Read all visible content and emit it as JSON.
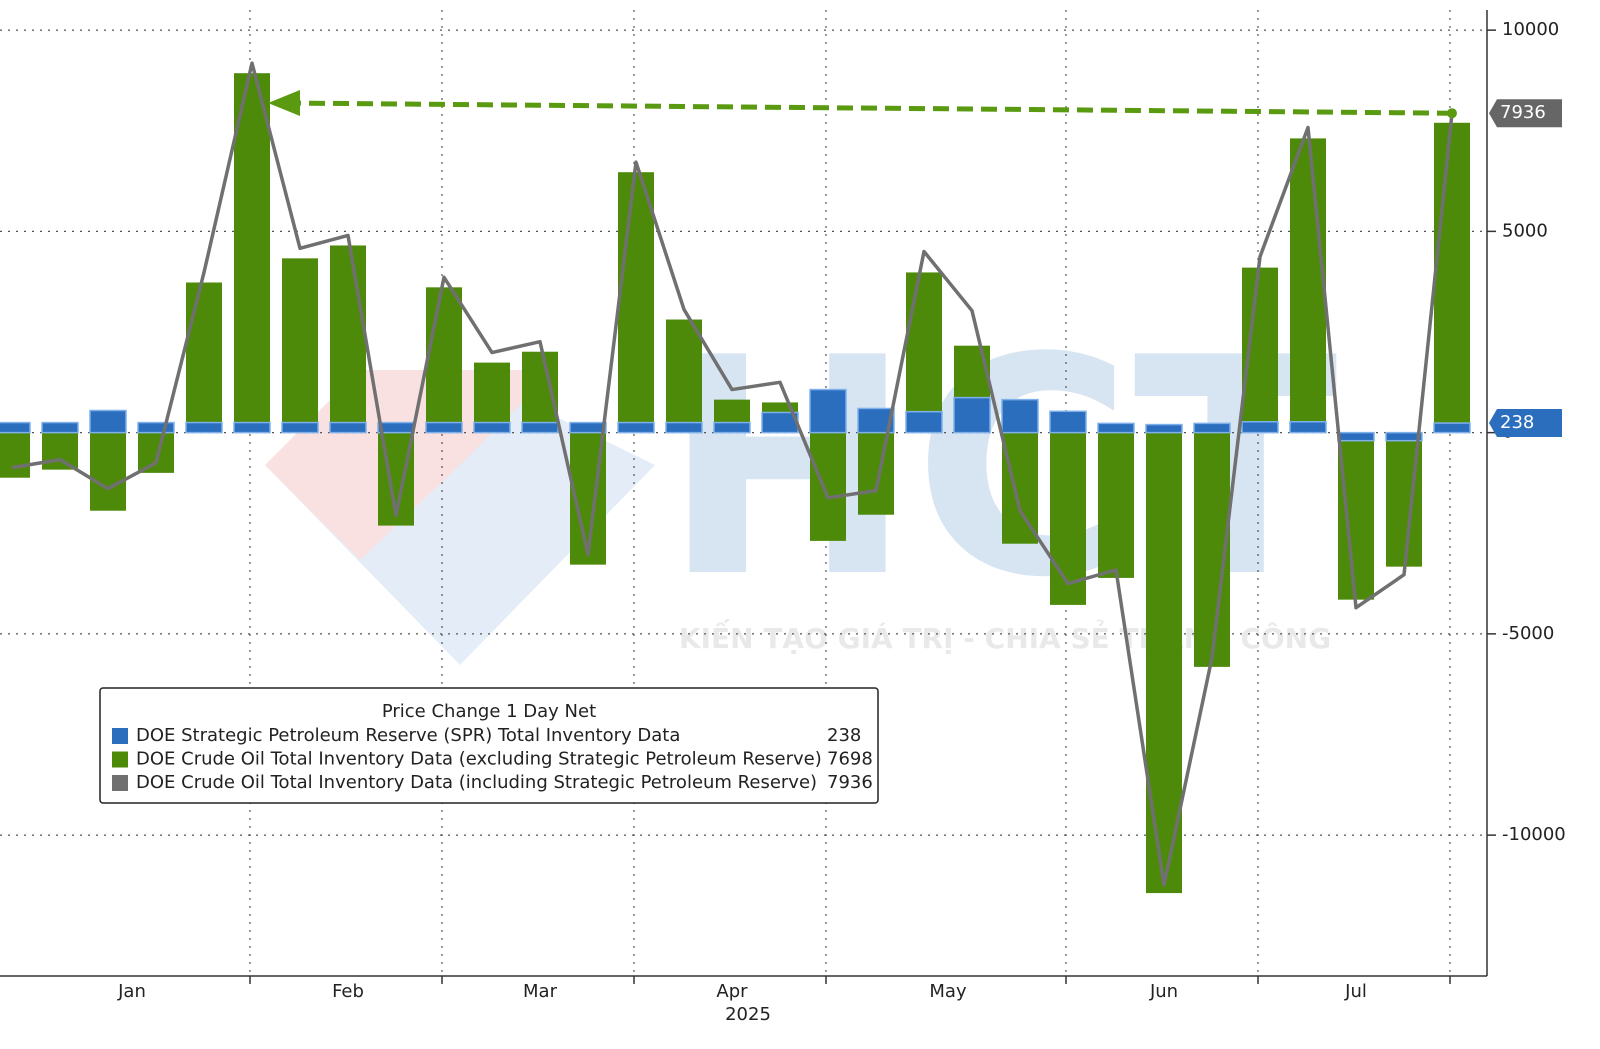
{
  "chart_data": {
    "type": "bar",
    "legend_title": "Price Change 1 Day Net",
    "x_axis_labels": [
      "Jan",
      "Feb",
      "Mar",
      "Apr",
      "May",
      "Jun",
      "Jul"
    ],
    "x_axis_year": "2025",
    "watermark_logo": "HCT",
    "watermark_slogan": "KIẾN TẠO GIÁ TRỊ - CHIA SẺ THÀNH CÔNG",
    "ylim": [
      -13500,
      10500
    ],
    "yticks": [
      10000,
      5000,
      0,
      -5000,
      -10000
    ],
    "grid": true,
    "series": [
      {
        "name": "DOE Strategic Petroleum Reserve (SPR) Total Inventory Data",
        "color": "#2a6ebd",
        "kind": "bar",
        "values": [
          250,
          250,
          550,
          250,
          250,
          250,
          250,
          250,
          250,
          250,
          250,
          250,
          250,
          250,
          250,
          250,
          500,
          1070,
          600,
          520,
          870,
          820,
          530,
          230,
          200,
          230,
          270,
          270,
          -200,
          -200,
          238
        ]
      },
      {
        "name": "DOE Crude Oil Total Inventory Data (excluding Strategic Petroleum Reserve)",
        "color": "#4e8a0a",
        "kind": "bar",
        "values": [
          -1120,
          -920,
          -1940,
          -1000,
          3730,
          8930,
          4330,
          4650,
          -2310,
          3610,
          1740,
          2010,
          -3280,
          6470,
          2810,
          820,
          750,
          -2690,
          -2040,
          3980,
          2160,
          -2760,
          -4280,
          -3610,
          -11440,
          -5820,
          4100,
          7310,
          -4150,
          -3330,
          7698
        ]
      },
      {
        "name": "DOE Crude Oil Total Inventory Data (including Strategic Petroleum Reserve)",
        "color": "#707070",
        "kind": "line",
        "values": [
          -870,
          -670,
          -1390,
          -750,
          3980,
          9180,
          4580,
          4900,
          -2060,
          3860,
          1990,
          2260,
          -3030,
          6720,
          3060,
          1070,
          1250,
          -1620,
          -1440,
          4500,
          3030,
          -1940,
          -3750,
          -3410,
          -11240,
          -5590,
          4370,
          7580,
          -4350,
          -3530,
          7936
        ]
      }
    ]
  }
}
